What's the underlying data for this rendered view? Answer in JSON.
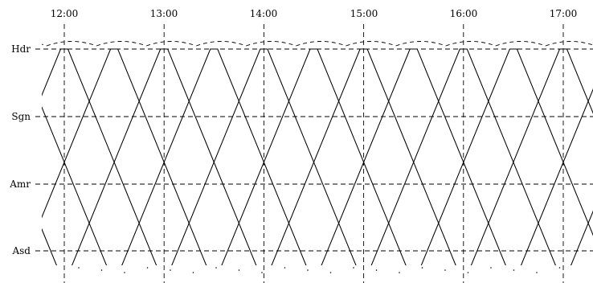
{
  "times": [
    "12:00",
    "13:00",
    "14:00",
    "15:00",
    "16:00",
    "17:00"
  ],
  "stations": [
    "Hdr",
    "Sgn",
    "Amr",
    "Asd"
  ]
}
